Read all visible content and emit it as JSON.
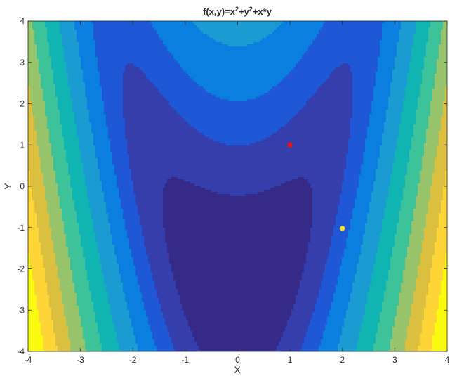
{
  "chart_data": {
    "type": "heatmap",
    "subtype": "filled-contour",
    "title": "f(x,y)=x²+y²+x*y",
    "title_parts": [
      {
        "text": "f(x,y)=x",
        "sup": false
      },
      {
        "text": "2",
        "sup": true
      },
      {
        "text": "+y",
        "sup": false
      },
      {
        "text": "2",
        "sup": true
      },
      {
        "text": "+x*y",
        "sup": false
      }
    ],
    "xlabel": "X",
    "ylabel": "Y",
    "xlim": [
      -4,
      4
    ],
    "ylim": [
      -4,
      4
    ],
    "x_ticks": [
      "-4",
      "-3",
      "-2",
      "-1",
      "0",
      "1",
      "2",
      "3",
      "4"
    ],
    "y_ticks": [
      "-4",
      "-3",
      "-2",
      "-1",
      "0",
      "1",
      "2",
      "3",
      "4"
    ],
    "grid": false,
    "colormap": "parula",
    "colors": [
      "#352a87",
      "#343eac",
      "#1f58d6",
      "#0a7fe0",
      "#1a9cd3",
      "#10b5b3",
      "#3ec29a",
      "#97c46a",
      "#dcbf3e",
      "#fdd536",
      "#f9fb0e"
    ],
    "contour_shape": "parabolic valley opening upward, minimum along y ≈ x² - 2.5, steep increase toward x = ±4",
    "points": [
      {
        "x": 1,
        "y": 1,
        "color": "#ee1111"
      },
      {
        "x": 2,
        "y": -1.02,
        "color": "#f7e41e"
      }
    ]
  }
}
